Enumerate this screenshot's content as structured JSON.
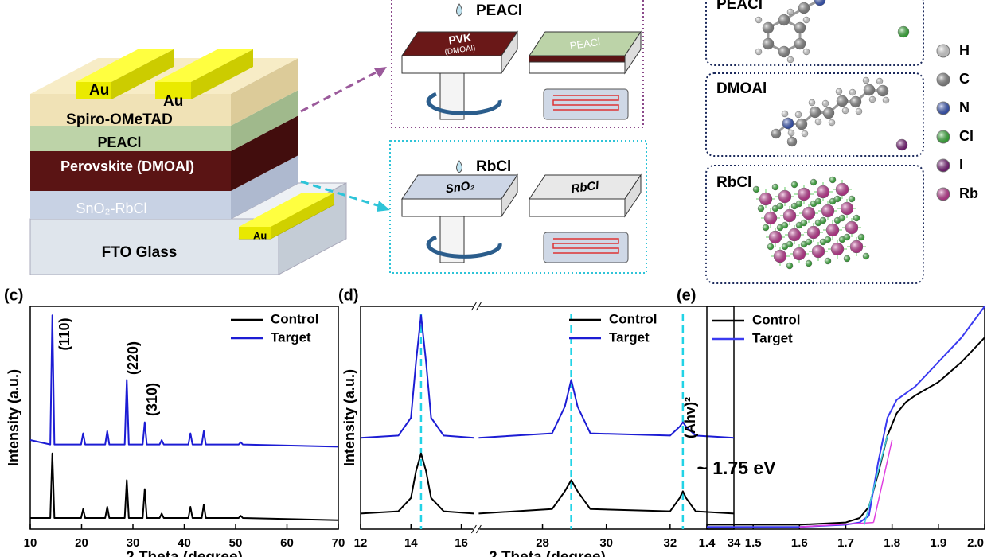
{
  "device": {
    "au": [
      "Au",
      "Au",
      "Au"
    ],
    "layers": [
      "Spiro-OMeTAD",
      "PEACl",
      "Perovskite (DMOAl)",
      "SnO₂-RbCl",
      "FTO Glass"
    ]
  },
  "process": [
    {
      "drop": "PEACl",
      "left": [
        "PVK",
        "(DMOAl)"
      ],
      "right": "PEACl"
    },
    {
      "drop": "RbCl",
      "left": [
        "SnO₂"
      ],
      "right": "RbCl"
    }
  ],
  "materials": {
    "boxes": [
      "PEACl",
      "DMOAl",
      "RbCl"
    ],
    "legend": [
      "H",
      "C",
      "N",
      "Cl",
      "I",
      "Rb"
    ],
    "legend_colors": [
      "#ffffff",
      "#9a9a9a",
      "#3a5fd8",
      "#3ccf3c",
      "#8a1a8a",
      "#e23aa8"
    ]
  },
  "chart_data": [
    {
      "type": "line",
      "panel": "(c)",
      "xlabel": "2 Theta (degree)",
      "ylabel": "Intensity (a.u.)",
      "xlim": [
        10,
        70
      ],
      "xticks": [
        10,
        20,
        30,
        40,
        50,
        60,
        70
      ],
      "ylim": [
        0,
        100
      ],
      "legend": "upper right",
      "annotations": [
        "(110)",
        "(220)",
        "(310)"
      ],
      "x": [
        10,
        13.9,
        14.3,
        14.7,
        19.9,
        20.3,
        20.7,
        24.6,
        25,
        25.4,
        28.4,
        28.8,
        29.2,
        31.9,
        32.3,
        32.7,
        35.2,
        35.6,
        36,
        40.8,
        41.2,
        41.6,
        43.4,
        43.8,
        44.2,
        50.6,
        51,
        51.4,
        70
      ],
      "series": [
        {
          "name": "Control",
          "color": "#000000",
          "values": [
            5,
            5,
            34,
            5,
            5,
            9,
            5,
            5,
            10,
            5,
            5,
            22,
            5,
            5,
            18,
            5,
            5,
            7,
            5,
            5,
            10,
            5,
            5,
            11,
            5,
            5,
            6,
            5,
            4
          ]
        },
        {
          "name": "Target",
          "color": "#1c1cd4",
          "values": [
            40,
            38,
            96,
            38,
            38,
            43,
            38,
            38,
            44,
            38,
            38,
            67,
            38,
            38,
            48,
            38,
            38,
            40,
            38,
            38,
            43,
            38,
            38,
            44,
            38,
            38,
            39,
            38,
            37
          ]
        }
      ]
    },
    {
      "type": "line",
      "panel": "(d)",
      "xlabel": "2 Theta (degree)",
      "ylabel": "Intensity (a.u.)",
      "xlims": [
        [
          12,
          16.5
        ],
        [
          26,
          34
        ]
      ],
      "xticks": [
        12,
        14,
        16,
        28,
        30,
        32,
        34
      ],
      "ylim": [
        0,
        100
      ],
      "legend": "upper right",
      "reference_lines": [
        14.4,
        28.9,
        32.4
      ],
      "reference_color": "#22d3e6",
      "x": [
        12,
        13.5,
        14.0,
        14.2,
        14.4,
        14.6,
        14.8,
        15.3,
        16.5,
        26,
        28.3,
        28.7,
        28.9,
        29.1,
        29.5,
        32.0,
        32.3,
        32.4,
        32.5,
        32.8,
        34
      ],
      "series": [
        {
          "name": "Control",
          "color": "#000000",
          "values": [
            7,
            8,
            14,
            26,
            34,
            26,
            14,
            8,
            7,
            7,
            9,
            17,
            22,
            17,
            9,
            8,
            14,
            17,
            14,
            8,
            7
          ]
        },
        {
          "name": "Target",
          "color": "#1c1cd4",
          "values": [
            41,
            42,
            50,
            75,
            96,
            75,
            50,
            42,
            41,
            41,
            43,
            55,
            67,
            55,
            43,
            42,
            46,
            48,
            46,
            42,
            41
          ]
        }
      ]
    },
    {
      "type": "line",
      "panel": "(e)",
      "ylabel": "(Ahv)²",
      "xlim": [
        1.4,
        2.0
      ],
      "xticks": [
        1.4,
        1.5,
        1.6,
        1.7,
        1.8,
        1.9,
        {
          "value": 2,
          "label": "2.0"
        }
      ],
      "ylim": [
        0,
        100
      ],
      "legend": "upper left",
      "annotations": [
        "~ 1.75 eV"
      ],
      "x": [
        1.4,
        1.5,
        1.6,
        1.7,
        1.73,
        1.75,
        1.77,
        1.79,
        1.81,
        1.83,
        1.85,
        1.9,
        1.95,
        2.0
      ],
      "series": [
        {
          "name": "Control",
          "color": "#000000",
          "values": [
            2,
            2,
            2,
            3,
            5,
            10,
            25,
            42,
            52,
            57,
            60,
            66,
            75,
            86
          ]
        },
        {
          "name": "Target",
          "color": "#3a3af0",
          "values": [
            1,
            1,
            1,
            2,
            3,
            6,
            30,
            50,
            58,
            61,
            64,
            75,
            86,
            100
          ]
        }
      ],
      "fit_lines": [
        {
          "color": "#e040e0",
          "x": [
            1.6,
            1.76
          ],
          "values": [
            1,
            3
          ]
        },
        {
          "color": "#e040e0",
          "x": [
            1.76,
            1.8
          ],
          "values": [
            3,
            40
          ]
        },
        {
          "color": "#40d0e0",
          "x": [
            1.74,
            1.79
          ],
          "values": [
            2,
            42
          ]
        }
      ]
    }
  ]
}
